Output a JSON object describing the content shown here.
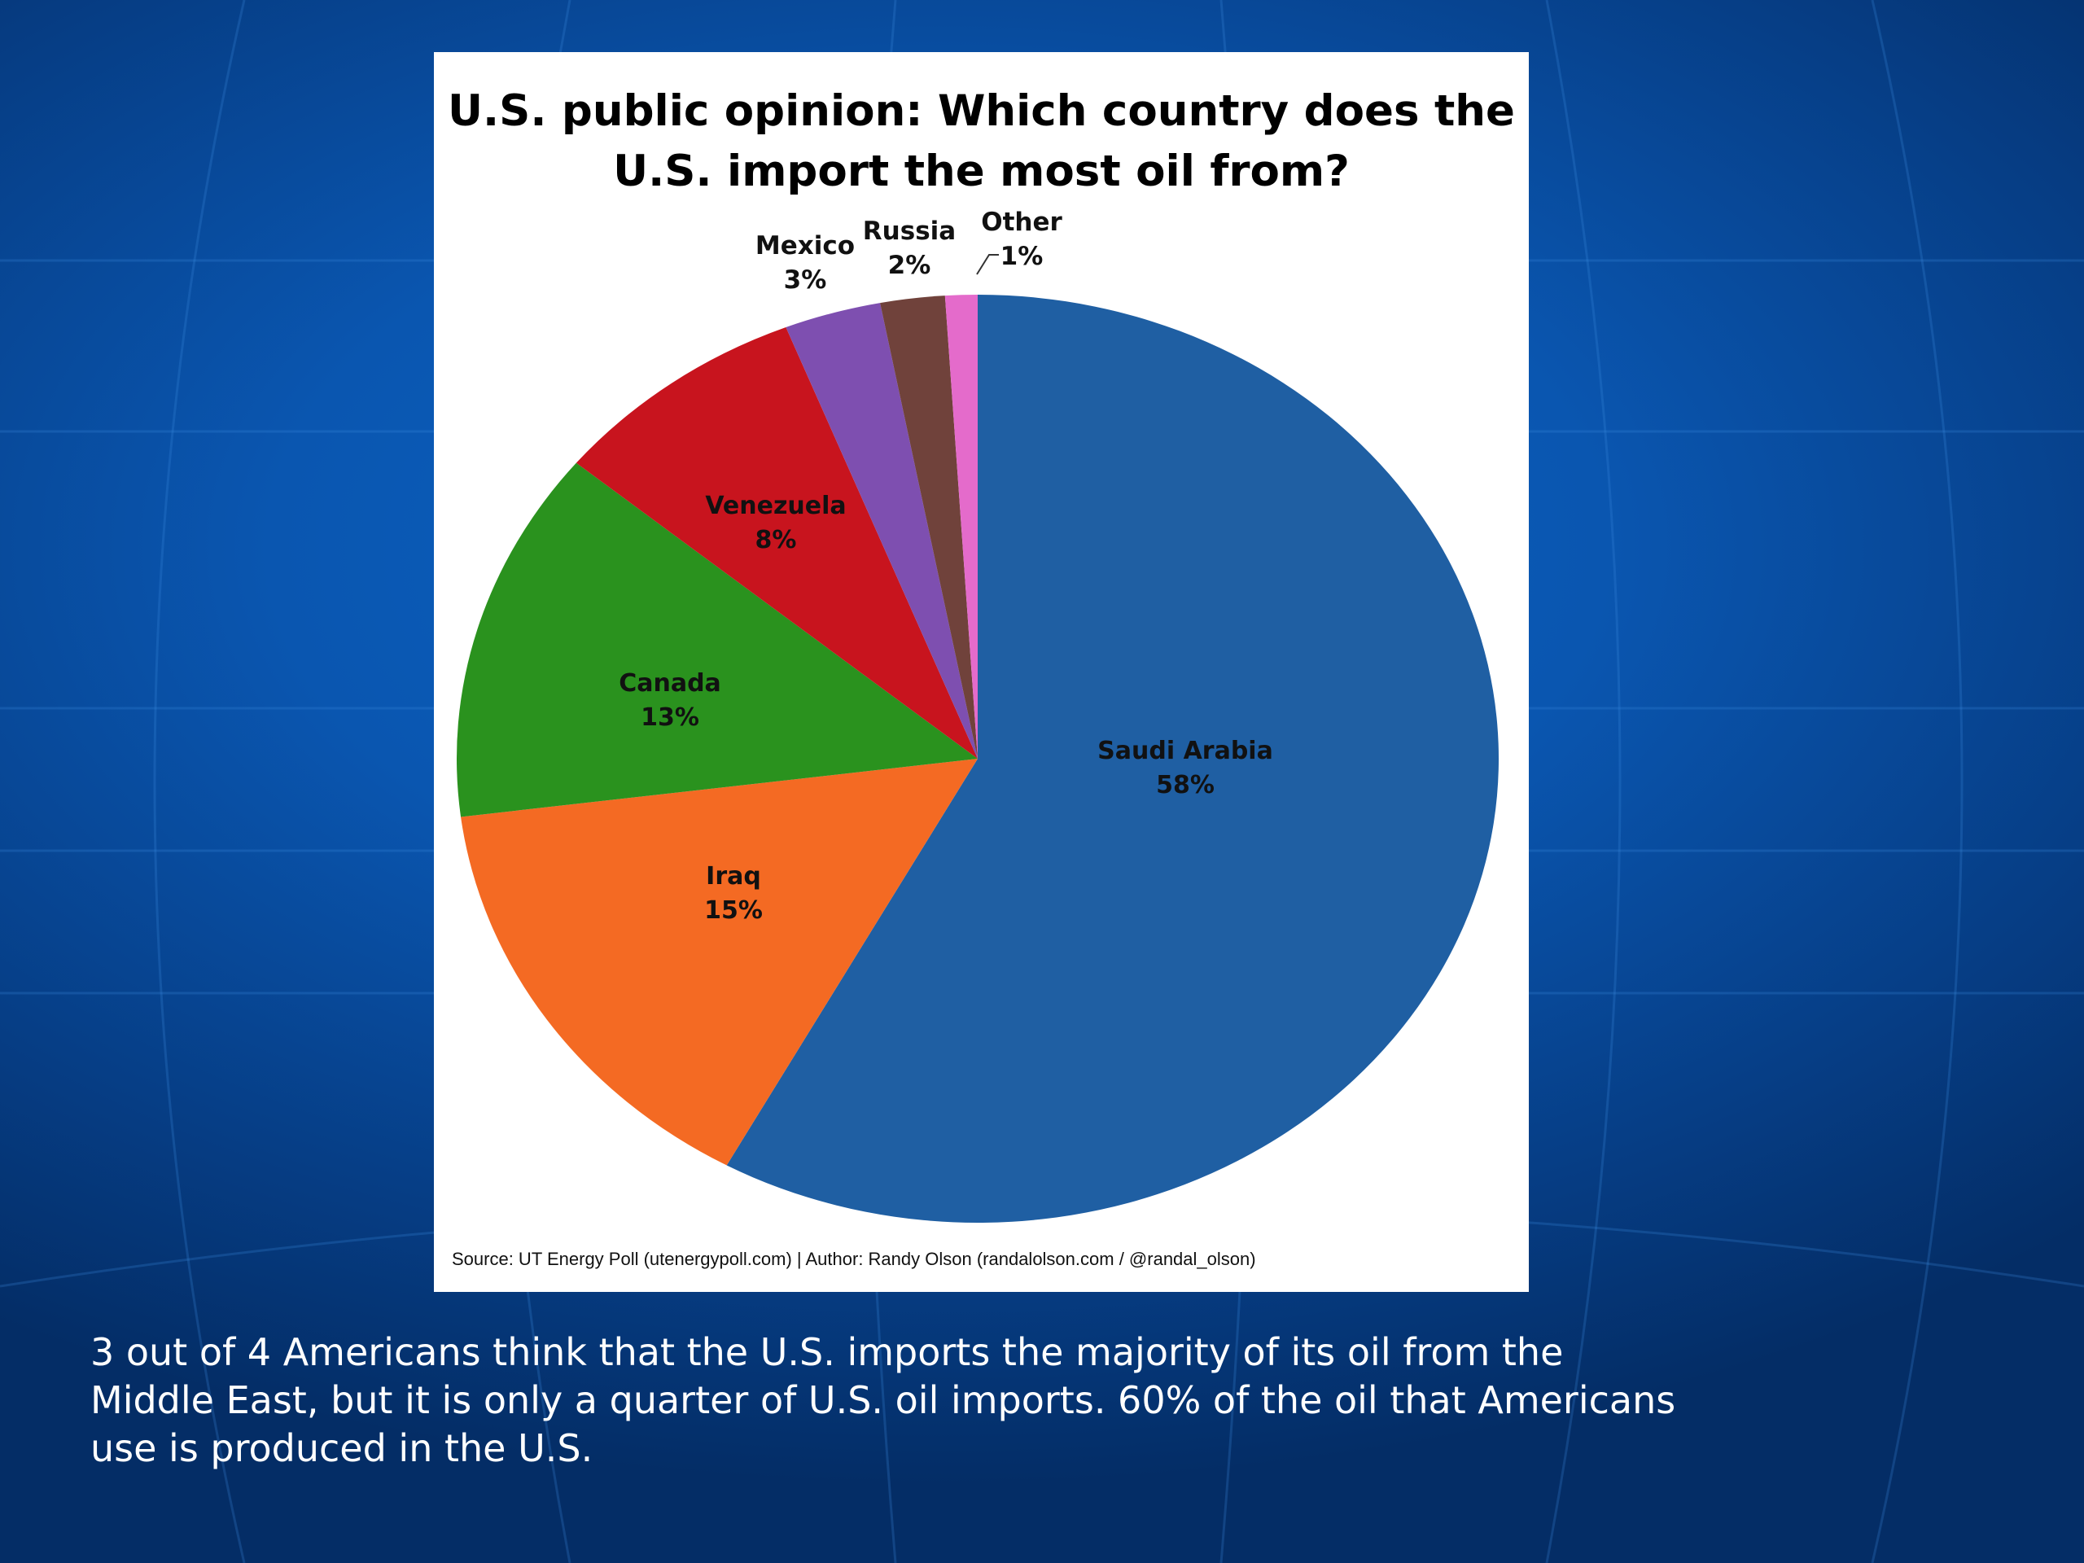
{
  "slide": {
    "caption_line1": "3 out of 4 Americans think that the U.S. imports the majority of its oil from the",
    "caption_line2": "Middle East, but it is only a quarter of U.S. oil imports.   60% of the oil that Americans",
    "caption_line3": "use is produced in the U.S."
  },
  "chart_data": {
    "type": "pie",
    "title_line1": "U.S. public opinion: Which country does the",
    "title_line2": "U.S. import the most oil from?",
    "source": "Source: UT Energy Poll (utenergypoll.com) | Author: Randy Olson (randalolson.com / @randal_olson)",
    "slices": [
      {
        "label": "Saudi Arabia",
        "value": 58,
        "value_label": "58%",
        "color": "#1f5fa3"
      },
      {
        "label": "Iraq",
        "value": 15,
        "value_label": "15%",
        "color": "#f46a23"
      },
      {
        "label": "Canada",
        "value": 13,
        "value_label": "13%",
        "color": "#2a921e"
      },
      {
        "label": "Venezuela",
        "value": 8,
        "value_label": "8%",
        "color": "#c8141e"
      },
      {
        "label": "Mexico",
        "value": 3,
        "value_label": "3%",
        "color": "#7e4fb0"
      },
      {
        "label": "Russia",
        "value": 2,
        "value_label": "2%",
        "color": "#70423b"
      },
      {
        "label": "Other",
        "value": 1,
        "value_label": "1%",
        "color": "#e46bcb"
      }
    ],
    "start": "12 o'clock",
    "direction": "clockwise"
  }
}
